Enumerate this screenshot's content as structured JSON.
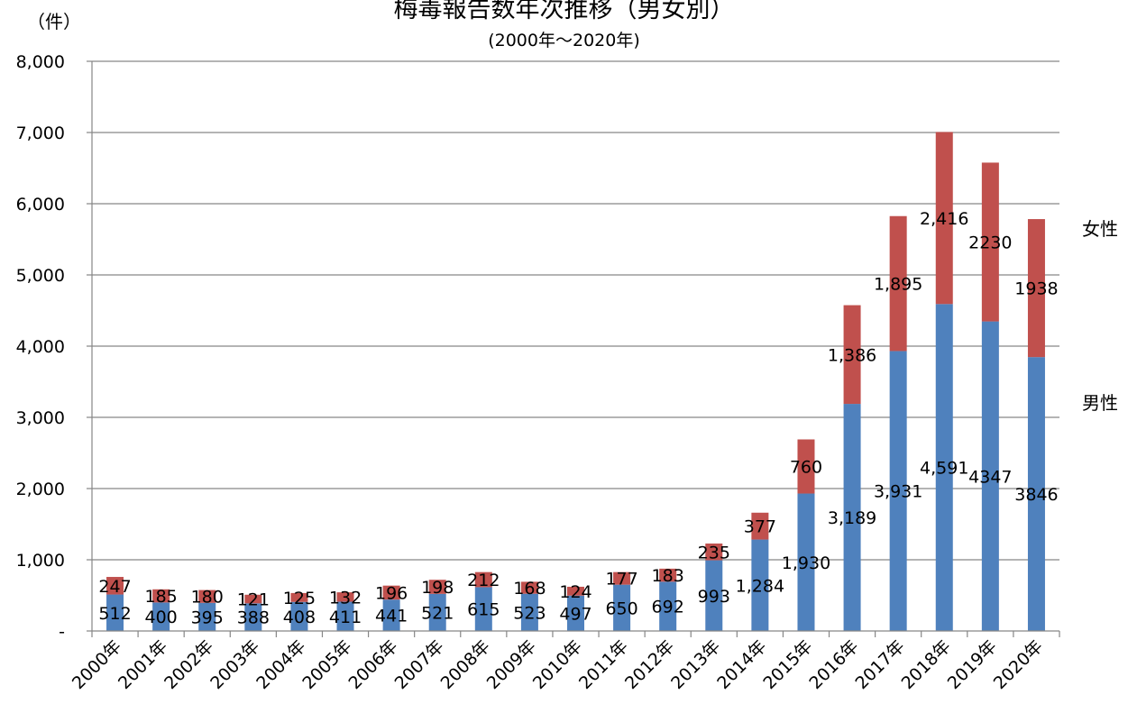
{
  "header": {
    "unit_label": "（件）",
    "title": "梅毒報告数年次推移（男女別）",
    "subtitle": "(2000年〜2020年)"
  },
  "legend": {
    "female": "女性",
    "male": "男性"
  },
  "colors": {
    "male": "#4f81bd",
    "female": "#c0504d",
    "grid": "#868686"
  },
  "chart_data": {
    "type": "bar",
    "stacked": true,
    "title": "梅毒報告数年次推移（男女別）",
    "subtitle": "(2000年〜2020年)",
    "ylabel": "（件）",
    "ylim": [
      0,
      8000
    ],
    "yticks": [
      "-",
      "1,000",
      "2,000",
      "3,000",
      "4,000",
      "5,000",
      "6,000",
      "7,000",
      "8,000"
    ],
    "grid": true,
    "legend_position": "right",
    "categories": [
      "2000年",
      "2001年",
      "2002年",
      "2003年",
      "2004年",
      "2005年",
      "2006年",
      "2007年",
      "2008年",
      "2009年",
      "2010年",
      "2011年",
      "2012年",
      "2013年",
      "2014年",
      "2015年",
      "2016年",
      "2017年",
      "2018年",
      "2019年",
      "2020年"
    ],
    "series": [
      {
        "name": "男性",
        "values": [
          512,
          400,
          395,
          388,
          408,
          411,
          441,
          521,
          615,
          523,
          497,
          650,
          692,
          993,
          1284,
          1930,
          3189,
          3931,
          4591,
          4347,
          3846
        ],
        "labels": [
          "512",
          "400",
          "395",
          "388",
          "408",
          "411",
          "441",
          "521",
          "615",
          "523",
          "497",
          "650",
          "692",
          "993",
          "1,284",
          "1,930",
          "3,189",
          "3,931",
          "4,591",
          "4347",
          "3846"
        ]
      },
      {
        "name": "女性",
        "values": [
          247,
          185,
          180,
          121,
          125,
          132,
          196,
          198,
          212,
          168,
          124,
          177,
          183,
          235,
          377,
          760,
          1386,
          1895,
          2416,
          2230,
          1938
        ],
        "labels": [
          "247",
          "185",
          "180",
          "121",
          "125",
          "132",
          "196",
          "198",
          "212",
          "168",
          "124",
          "177",
          "183",
          "235",
          "377",
          "760",
          "1,386",
          "1,895",
          "2,416",
          "2230",
          "1938"
        ]
      }
    ]
  }
}
